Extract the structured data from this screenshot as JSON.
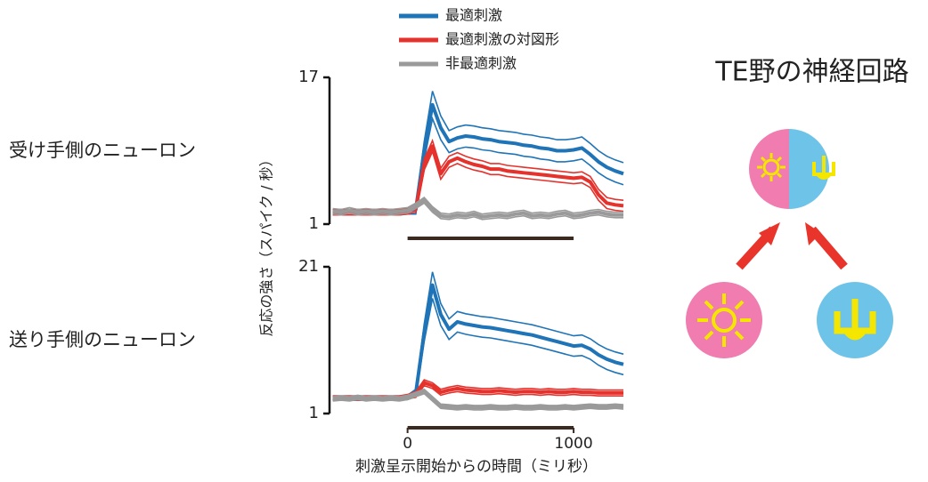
{
  "figure": {
    "ylabel": "反応の強さ（スパイク / 秒）"
  },
  "diagram": {
    "title": "TE野の神経回路"
  },
  "chart_data": [
    {
      "type": "line",
      "title": "受け手側のニューロン",
      "x": [
        -450,
        -400,
        -350,
        -300,
        -250,
        -200,
        -150,
        -100,
        -50,
        0,
        50,
        100,
        150,
        200,
        250,
        300,
        350,
        400,
        450,
        500,
        550,
        600,
        650,
        700,
        750,
        800,
        850,
        900,
        950,
        1000,
        1050,
        1100,
        1150,
        1200,
        1250,
        1300
      ],
      "xlim": [
        -470,
        1300
      ],
      "ylim": [
        1,
        17
      ],
      "yticks": [
        1,
        17
      ],
      "stimulus": [
        0,
        1000
      ],
      "series": [
        {
          "name": "最適刺激",
          "color": "#1f74b8",
          "values": [
            2.3,
            2.3,
            2.3,
            2.3,
            2.3,
            2.3,
            2.3,
            2.3,
            2.3,
            2.4,
            2.6,
            9,
            14,
            11.5,
            10,
            10.4,
            10.6,
            10.5,
            10.3,
            10.2,
            10.0,
            9.9,
            9.8,
            9.6,
            9.5,
            9.3,
            9.2,
            9.0,
            9.0,
            9.1,
            9.3,
            8.6,
            7.8,
            7.2,
            6.8,
            6.5
          ],
          "errors": [
            0.3,
            0.3,
            0.3,
            0.3,
            0.3,
            0.3,
            0.3,
            0.3,
            0.3,
            0.3,
            0.5,
            1.0,
            1.5,
            1.3,
            1.2,
            1.2,
            1.2,
            1.2,
            1.2,
            1.2,
            1.2,
            1.2,
            1.2,
            1.2,
            1.2,
            1.2,
            1.2,
            1.2,
            1.2,
            1.2,
            1.2,
            1.2,
            1.2,
            1.2,
            1.2,
            1.2
          ]
        },
        {
          "name": "最適刺激の対図形",
          "color": "#e5322d",
          "values": [
            2.3,
            2.3,
            2.3,
            2.3,
            2.3,
            2.3,
            2.3,
            2.3,
            2.3,
            2.4,
            2.7,
            7.5,
            9.5,
            6.5,
            7.8,
            8.2,
            7.8,
            7.5,
            7.3,
            7.0,
            7.0,
            6.8,
            6.7,
            6.6,
            6.5,
            6.4,
            6.3,
            6.2,
            6.1,
            6.0,
            6.1,
            5.6,
            4.2,
            3.3,
            3.1,
            3.0
          ],
          "errors": [
            0.3,
            0.3,
            0.3,
            0.3,
            0.3,
            0.3,
            0.3,
            0.3,
            0.3,
            0.3,
            0.4,
            0.6,
            0.6,
            0.6,
            0.6,
            0.6,
            0.6,
            0.6,
            0.6,
            0.6,
            0.6,
            0.6,
            0.6,
            0.6,
            0.6,
            0.6,
            0.6,
            0.6,
            0.6,
            0.6,
            0.6,
            0.6,
            0.6,
            0.6,
            0.6,
            0.6
          ]
        },
        {
          "name": "非最適刺激",
          "color": "#9a9a9a",
          "values": [
            2.4,
            2.3,
            2.5,
            2.3,
            2.4,
            2.3,
            2.4,
            2.3,
            2.4,
            2.5,
            3.0,
            3.6,
            2.6,
            1.9,
            1.8,
            2.0,
            1.9,
            2.1,
            1.8,
            1.9,
            2.0,
            1.9,
            2.1,
            2.2,
            1.9,
            2.0,
            1.9,
            2.1,
            2.2,
            1.9,
            2.0,
            2.2,
            2.3,
            2.1,
            2.0,
            2.0
          ],
          "errors": [
            0.3,
            0.3,
            0.3,
            0.3,
            0.3,
            0.3,
            0.3,
            0.3,
            0.3,
            0.3,
            0.3,
            0.3,
            0.3,
            0.3,
            0.3,
            0.3,
            0.3,
            0.3,
            0.3,
            0.3,
            0.3,
            0.3,
            0.3,
            0.3,
            0.3,
            0.3,
            0.3,
            0.3,
            0.3,
            0.3,
            0.3,
            0.3,
            0.3,
            0.3,
            0.3,
            0.3
          ]
        }
      ]
    },
    {
      "type": "line",
      "title": "送り手側のニューロン",
      "xlabel": "刺激呈示開始からの時間（ミリ秒）",
      "x": [
        -450,
        -400,
        -350,
        -300,
        -250,
        -200,
        -150,
        -100,
        -50,
        0,
        50,
        100,
        150,
        200,
        250,
        300,
        350,
        400,
        450,
        500,
        550,
        600,
        650,
        700,
        750,
        800,
        850,
        900,
        950,
        1000,
        1050,
        1100,
        1150,
        1200,
        1250,
        1300
      ],
      "xlim": [
        -470,
        1300
      ],
      "xticks": [
        0,
        1000
      ],
      "ylim": [
        1,
        21
      ],
      "yticks": [
        1,
        21
      ],
      "stimulus": [
        0,
        1000
      ],
      "series": [
        {
          "color": "#1f74b8",
          "values": [
            3.1,
            3.1,
            3.1,
            3.1,
            3.1,
            3.1,
            3.1,
            3.1,
            3.1,
            3.2,
            3.8,
            12,
            18.5,
            14.5,
            12.5,
            13.5,
            13.2,
            13.0,
            12.8,
            12.7,
            12.5,
            12.3,
            12.1,
            11.9,
            11.7,
            11.4,
            11.1,
            10.8,
            10.5,
            10.2,
            10.3,
            9.8,
            9.0,
            8.4,
            8.0,
            7.7
          ],
          "errors": [
            0.3,
            0.3,
            0.3,
            0.3,
            0.3,
            0.3,
            0.3,
            0.3,
            0.3,
            0.3,
            0.5,
            1.2,
            1.8,
            1.5,
            1.4,
            1.4,
            1.4,
            1.4,
            1.4,
            1.4,
            1.4,
            1.4,
            1.4,
            1.4,
            1.4,
            1.4,
            1.4,
            1.4,
            1.4,
            1.4,
            1.4,
            1.4,
            1.4,
            1.4,
            1.4,
            1.4
          ]
        },
        {
          "color": "#e5322d",
          "values": [
            3.1,
            3.1,
            3.1,
            3.1,
            3.1,
            3.1,
            3.1,
            3.1,
            3.1,
            3.3,
            3.6,
            5.2,
            4.8,
            3.9,
            4.2,
            4.4,
            4.2,
            4.1,
            4.0,
            4.0,
            4.1,
            4.0,
            3.9,
            4.0,
            4.0,
            3.9,
            4.0,
            3.9,
            3.9,
            4.0,
            3.9,
            3.9,
            3.8,
            3.8,
            3.8,
            3.8
          ],
          "errors": [
            0.3,
            0.3,
            0.3,
            0.3,
            0.3,
            0.3,
            0.3,
            0.3,
            0.3,
            0.3,
            0.4,
            0.4,
            0.4,
            0.4,
            0.4,
            0.4,
            0.4,
            0.4,
            0.4,
            0.4,
            0.4,
            0.4,
            0.4,
            0.4,
            0.4,
            0.4,
            0.4,
            0.4,
            0.4,
            0.4,
            0.4,
            0.4,
            0.4,
            0.4,
            0.4,
            0.4
          ]
        },
        {
          "color": "#9a9a9a",
          "values": [
            3.0,
            3.1,
            3.0,
            3.2,
            3.0,
            3.1,
            3.0,
            3.1,
            3.0,
            3.2,
            3.6,
            4.0,
            3.0,
            2.0,
            1.9,
            1.8,
            1.9,
            1.8,
            1.8,
            1.9,
            1.8,
            1.8,
            1.9,
            1.8,
            1.8,
            1.9,
            1.8,
            1.8,
            1.9,
            1.8,
            1.9,
            2.0,
            1.9,
            1.9,
            2.0,
            1.9
          ],
          "errors": [
            0.3,
            0.3,
            0.3,
            0.3,
            0.3,
            0.3,
            0.3,
            0.3,
            0.3,
            0.3,
            0.3,
            0.3,
            0.3,
            0.3,
            0.3,
            0.3,
            0.3,
            0.3,
            0.3,
            0.3,
            0.3,
            0.3,
            0.3,
            0.3,
            0.3,
            0.3,
            0.3,
            0.3,
            0.3,
            0.3,
            0.3,
            0.3,
            0.3,
            0.3,
            0.3,
            0.3
          ]
        }
      ]
    }
  ]
}
